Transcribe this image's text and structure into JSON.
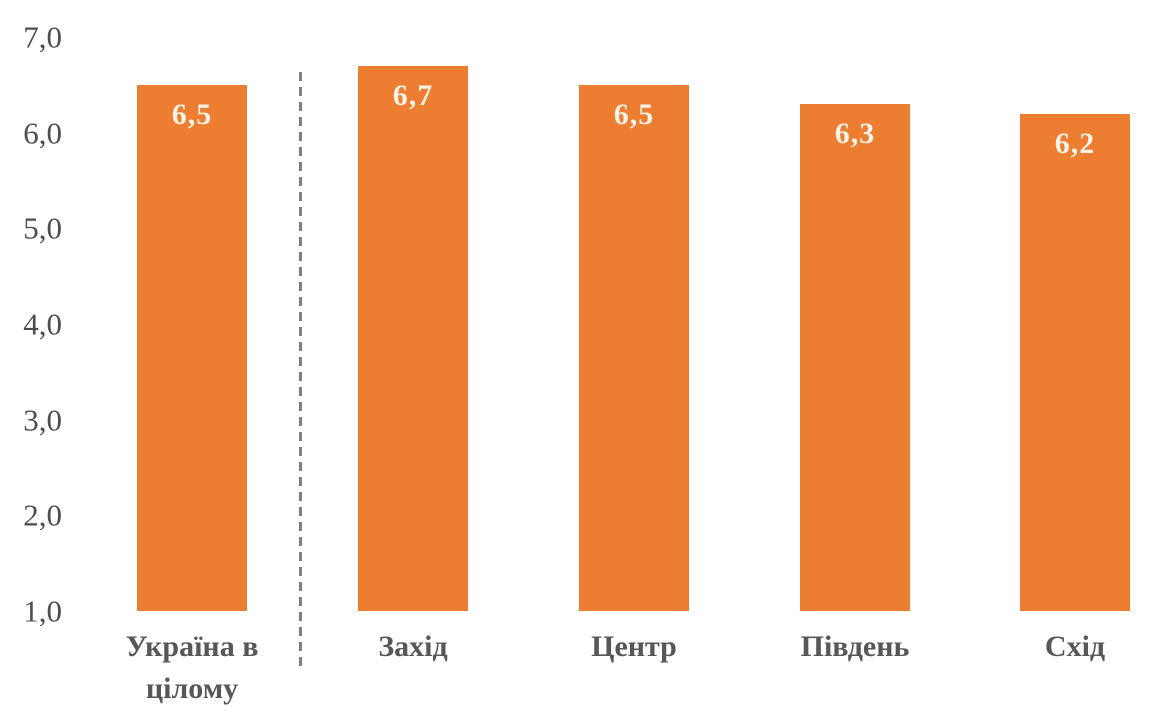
{
  "chart_data": {
    "type": "bar",
    "title": "",
    "categories": [
      "Україна в цілому",
      "Захід",
      "Центр",
      "Південь",
      "Схід"
    ],
    "values": [
      6.5,
      6.7,
      6.5,
      6.3,
      6.2
    ],
    "value_labels": [
      "6,5",
      "6,7",
      "6,5",
      "6,3",
      "6,2"
    ],
    "ytick_labels": [
      "7,0",
      "6,0",
      "5,0",
      "4,0",
      "3,0",
      "2,0",
      "1,0"
    ],
    "ytick_values": [
      7,
      6,
      5,
      4,
      3,
      2,
      1
    ],
    "ylim": [
      1.0,
      7.0
    ],
    "xlabel": "",
    "ylabel": "",
    "grid": false,
    "legend": false,
    "decimal_separator": ",",
    "bar_color": "#ED7D31",
    "value_label_color": "#FAF3E6",
    "tick_label_color": "#4D4D4D",
    "category_label_color": "#575757",
    "separator": {
      "position": "after_first_category",
      "style": "dashed",
      "color": "#808080"
    }
  }
}
